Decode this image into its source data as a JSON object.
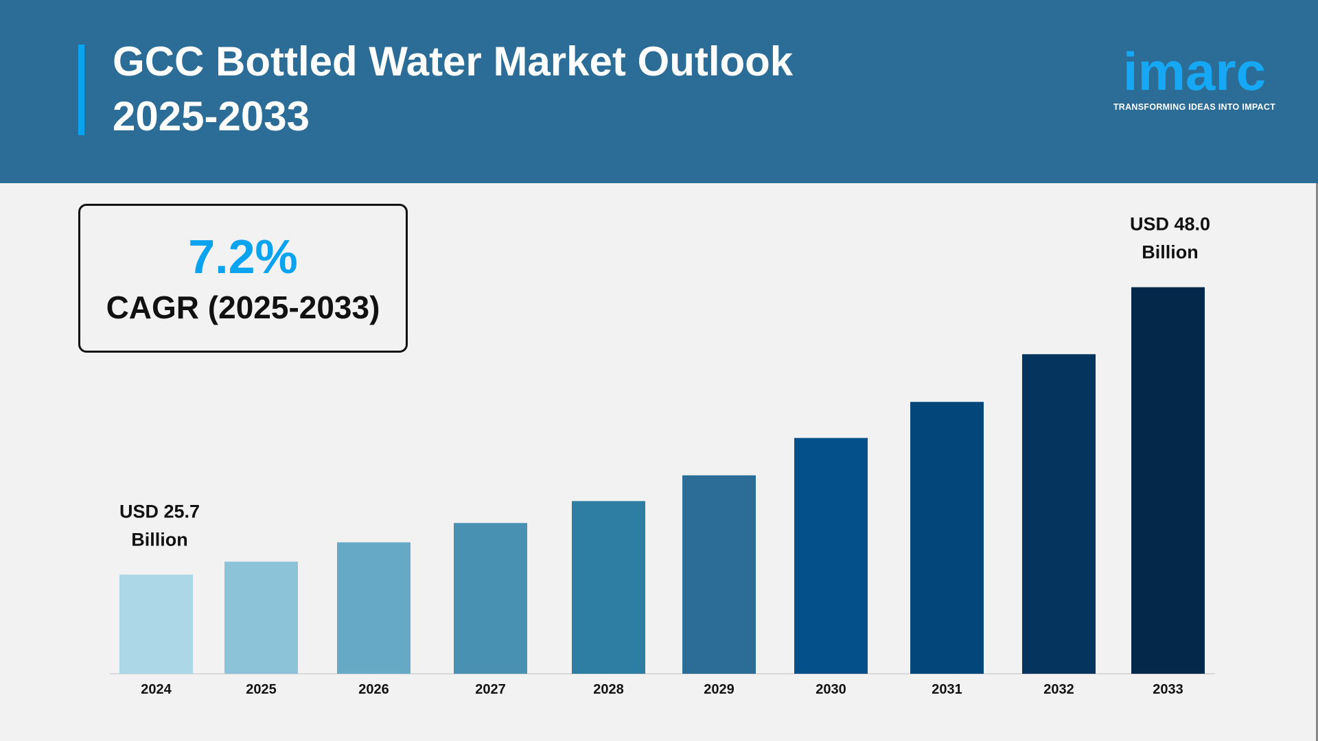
{
  "header": {
    "title_line1": "GCC Bottled Water Market Outlook",
    "title_line2": "2025-2033",
    "background": "#2b6d96",
    "accent": "#0aa3f0"
  },
  "logo": {
    "word": "imarc",
    "tagline": "TRANSFORMING IDEAS INTO IMPACT"
  },
  "cagr": {
    "value": "7.2%",
    "label": "CAGR (2025-2033)"
  },
  "chart_data": {
    "type": "bar",
    "categories": [
      "2024",
      "2025",
      "2026",
      "2027",
      "2028",
      "2029",
      "2030",
      "2031",
      "2032",
      "2033"
    ],
    "values": [
      25.7,
      26.7,
      28.2,
      29.7,
      31.4,
      33.4,
      36.3,
      39.1,
      42.8,
      48.0
    ],
    "unit": "USD Billion",
    "annotations": [
      {
        "category": "2024",
        "line1": "USD 25.7",
        "line2": "Billion"
      },
      {
        "category": "2033",
        "line1": "USD 48.0",
        "line2": "Billion"
      }
    ],
    "colors": [
      "#abd7e6",
      "#8cc3d9",
      "#65a9c7",
      "#4891b3",
      "#2e7da2",
      "#2b6d96",
      "#04508a",
      "#03467a",
      "#05355e",
      "#03284a"
    ],
    "grid": false,
    "legend": "none"
  }
}
